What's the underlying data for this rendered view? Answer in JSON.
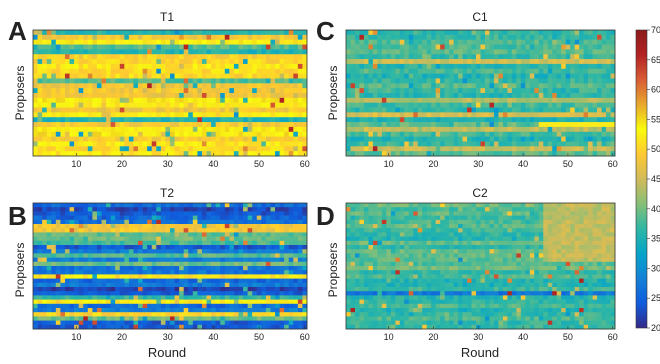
{
  "figure": {
    "xlabel": "Round",
    "ylabel": "Proposers",
    "colorbar": {
      "min": 20,
      "max": 70,
      "ticks": [
        "20",
        "25",
        "30",
        "35",
        "40",
        "45",
        "50",
        "55",
        "60",
        "65",
        "70"
      ],
      "colormap": "parula",
      "colors": [
        "#352a87",
        "#0f5cdd",
        "#1481d6",
        "#06a4ca",
        "#2eb7a4",
        "#87bf77",
        "#d1bb59",
        "#fec832",
        "#f9fb0e",
        "#e8a82e",
        "#d85c34",
        "#b22222",
        "#8b1a1a"
      ]
    }
  },
  "chart_data": [
    {
      "type": "heatmap",
      "panel_letter": "A",
      "title": "T1",
      "xlabel": "",
      "ylabel": "Proposers",
      "x_range": [
        1,
        60
      ],
      "x_ticks": [
        "10",
        "20",
        "30",
        "40",
        "50",
        "60"
      ],
      "rows": 26,
      "base_value": 50,
      "summary": "Mostly yellow (~48-55) with scattered blue (~30-40) cells; red outliers (~60-65) near rounds 10-50"
    },
    {
      "type": "heatmap",
      "panel_letter": "C",
      "title": "C1",
      "xlabel": "",
      "ylabel": "Proposers",
      "x_range": [
        1,
        60
      ],
      "x_ticks": [
        "10",
        "20",
        "30",
        "40",
        "50",
        "60"
      ],
      "rows": 26,
      "base_value": 37,
      "summary": "Mostly blue (~35-40) with lighter green rows; one proposer ~52 after round 44"
    },
    {
      "type": "heatmap",
      "panel_letter": "B",
      "title": "T2",
      "xlabel": "Round",
      "ylabel": "Proposers",
      "x_range": [
        1,
        60
      ],
      "x_ticks": [
        "10",
        "20",
        "30",
        "40",
        "50",
        "60"
      ],
      "rows": 30,
      "base_value": 44,
      "summary": "Mixed yellow (~50) and dark blue (~22-28) horizontal bands; red cells (~60) on left"
    },
    {
      "type": "heatmap",
      "panel_letter": "D",
      "title": "C2",
      "xlabel": "Round",
      "ylabel": "Proposers",
      "x_range": [
        1,
        60
      ],
      "x_ticks": [
        "10",
        "20",
        "30",
        "40",
        "50",
        "60"
      ],
      "rows": 30,
      "base_value": 38,
      "summary": "Mostly blue (~33-40) with scattered dark blue; green-yellow region (~44) after round 45"
    }
  ]
}
